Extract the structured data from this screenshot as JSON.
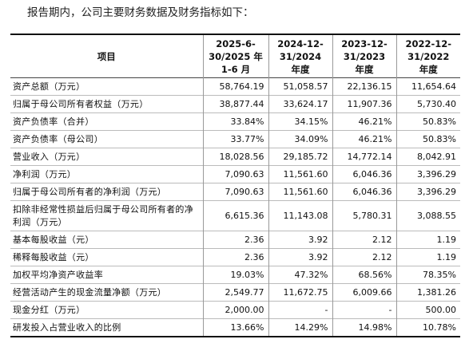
{
  "intro": "报告期内，公司主要财务数据及财务指标如下：",
  "table": {
    "header": {
      "item": "项目",
      "periods": [
        [
          "2025-6-",
          "30/2025 年",
          "1-6 月"
        ],
        [
          "2024-12-",
          "31/2024",
          "年度"
        ],
        [
          "2023-12-",
          "31/2023",
          "年度"
        ],
        [
          "2022-12-",
          "31/2022",
          "年度"
        ]
      ]
    },
    "rows": [
      {
        "label": "资产总额（万元）",
        "values": [
          "58,764.19",
          "51,058.57",
          "22,136.15",
          "11,654.64"
        ]
      },
      {
        "label": "归属于母公司所有者权益（万元）",
        "values": [
          "38,877.44",
          "33,624.17",
          "11,907.36",
          "5,730.40"
        ]
      },
      {
        "label": "资产负债率（合并）",
        "values": [
          "33.84%",
          "34.15%",
          "46.21%",
          "50.83%"
        ]
      },
      {
        "label": "资产负债率（母公司）",
        "values": [
          "33.77%",
          "34.09%",
          "46.21%",
          "50.83%"
        ]
      },
      {
        "label": "营业收入（万元）",
        "values": [
          "18,028.56",
          "29,185.72",
          "14,772.14",
          "8,042.91"
        ]
      },
      {
        "label": "净利润（万元）",
        "values": [
          "7,090.63",
          "11,561.60",
          "6,046.36",
          "3,396.29"
        ]
      },
      {
        "label": "归属于母公司所有者的净利润（万元）",
        "values": [
          "7,090.63",
          "11,561.60",
          "6,046.36",
          "3,396.29"
        ]
      },
      {
        "label": "扣除非经常性损益后归属于母公司所有者的净利润（万元）",
        "values": [
          "6,615.36",
          "11,143.08",
          "5,780.31",
          "3,088.55"
        ]
      },
      {
        "label": "基本每股收益（元）",
        "values": [
          "2.36",
          "3.92",
          "2.12",
          "1.19"
        ]
      },
      {
        "label": "稀释每股收益（元）",
        "values": [
          "2.36",
          "3.92",
          "2.12",
          "1.19"
        ]
      },
      {
        "label": "加权平均净资产收益率",
        "values": [
          "19.03%",
          "47.32%",
          "68.56%",
          "78.35%"
        ]
      },
      {
        "label": "经营活动产生的现金流量净额（万元）",
        "values": [
          "2,549.77",
          "11,672.75",
          "6,009.66",
          "1,381.26"
        ]
      },
      {
        "label": "现金分红（万元）",
        "values": [
          "2,000.00",
          "-",
          "-",
          "500.00"
        ]
      },
      {
        "label": "研发投入占营业收入的比例",
        "values": [
          "13.66%",
          "14.29%",
          "14.98%",
          "10.78%"
        ]
      }
    ]
  }
}
